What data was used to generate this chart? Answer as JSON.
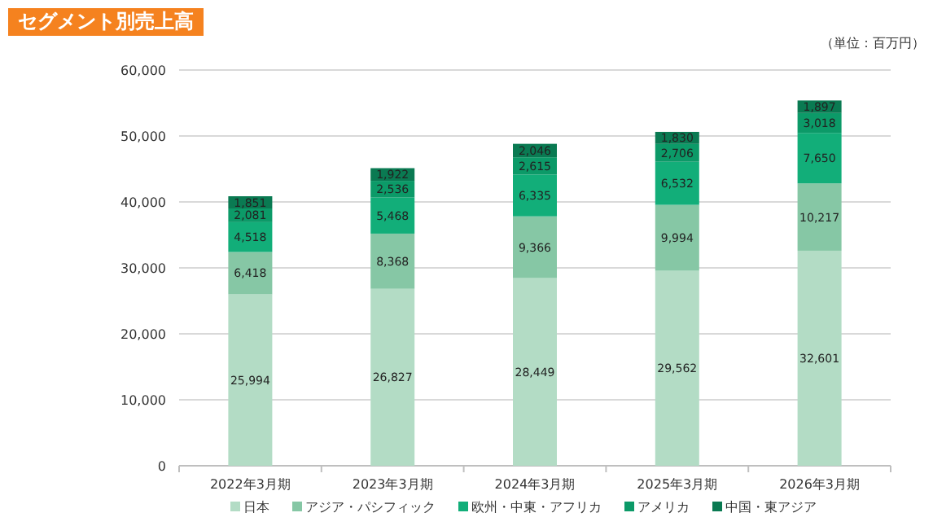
{
  "chart_data": {
    "type": "bar",
    "stacked": true,
    "title": "セグメント別売上高",
    "annotations": [
      "（単位：百万円）"
    ],
    "categories": [
      "2022年3月期",
      "2023年3月期",
      "2024年3月期",
      "2025年3月期",
      "2026年3月期"
    ],
    "series": [
      {
        "name": "日本",
        "color": "#b3dcc5",
        "values": [
          25994,
          26827,
          28449,
          29562,
          32601
        ],
        "value_labels": [
          "25,994",
          "26,827",
          "28,449",
          "29,562",
          "32,601"
        ]
      },
      {
        "name": "アジア・パシフィック",
        "color": "#86c7a5",
        "values": [
          6418,
          8368,
          9366,
          9994,
          10217
        ],
        "value_labels": [
          "6,418",
          "8,368",
          "9,366",
          "9,994",
          "10,217"
        ]
      },
      {
        "name": "欧州・中東・アフリカ",
        "color": "#12ae79",
        "values": [
          4518,
          5468,
          6335,
          6532,
          7650
        ],
        "value_labels": [
          "4,518",
          "5,468",
          "6,335",
          "6,532",
          "7,650"
        ]
      },
      {
        "name": "アメリカ",
        "color": "#0c9a68",
        "values": [
          2081,
          2536,
          2615,
          2706,
          3018
        ],
        "value_labels": [
          "2,081",
          "2,536",
          "2,615",
          "2,706",
          "3,018"
        ]
      },
      {
        "name": "中国・東アジア",
        "color": "#0a7a52",
        "values": [
          1851,
          1922,
          2046,
          1830,
          1897
        ],
        "value_labels": [
          "1,851",
          "1,922",
          "2,046",
          "1,830",
          "1,897"
        ]
      }
    ],
    "ylim": [
      0,
      60000
    ],
    "yticks": [
      {
        "value": 0,
        "label": "0"
      },
      {
        "value": 10000,
        "label": "10,000"
      },
      {
        "value": 20000,
        "label": "20,000"
      },
      {
        "value": 30000,
        "label": "30,000"
      },
      {
        "value": 40000,
        "label": "40,000"
      },
      {
        "value": 50000,
        "label": "50,000"
      },
      {
        "value": 60000,
        "label": "60,000"
      }
    ],
    "grid": "y",
    "legend": "bottom"
  }
}
